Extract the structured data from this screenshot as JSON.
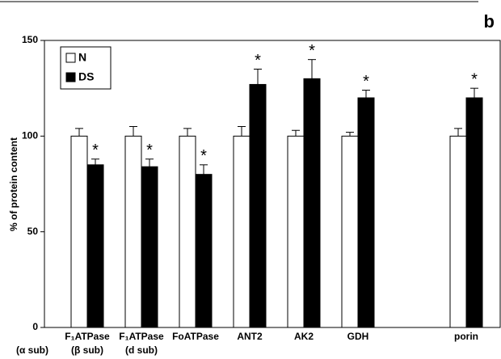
{
  "chart_data": {
    "type": "bar",
    "panel_label": "b",
    "ylabel": "% of protein content",
    "categories": [
      "F₁ATPase (β sub)",
      "F₁ATPase (d sub)",
      "FoATPase",
      "ANT2",
      "AK2",
      "GDH",
      null,
      "porin"
    ],
    "extra_label": "(α sub)",
    "series": [
      {
        "name": "N",
        "color": "#ffffff",
        "values": [
          100,
          100,
          100,
          100,
          100,
          100,
          null,
          100
        ],
        "errors": [
          4,
          5,
          4,
          5,
          3,
          2,
          null,
          4
        ]
      },
      {
        "name": "DS",
        "color": "#000000",
        "values": [
          85,
          84,
          80,
          127,
          130,
          120,
          null,
          120
        ],
        "errors": [
          3,
          4,
          5,
          8,
          10,
          4,
          null,
          5
        ],
        "significance": [
          "*",
          "*",
          "*",
          "*",
          "*",
          "*",
          null,
          "*"
        ]
      }
    ],
    "ylim": [
      0,
      150
    ],
    "yticks": [
      0,
      50,
      100,
      150
    ],
    "legend": "upper left"
  }
}
